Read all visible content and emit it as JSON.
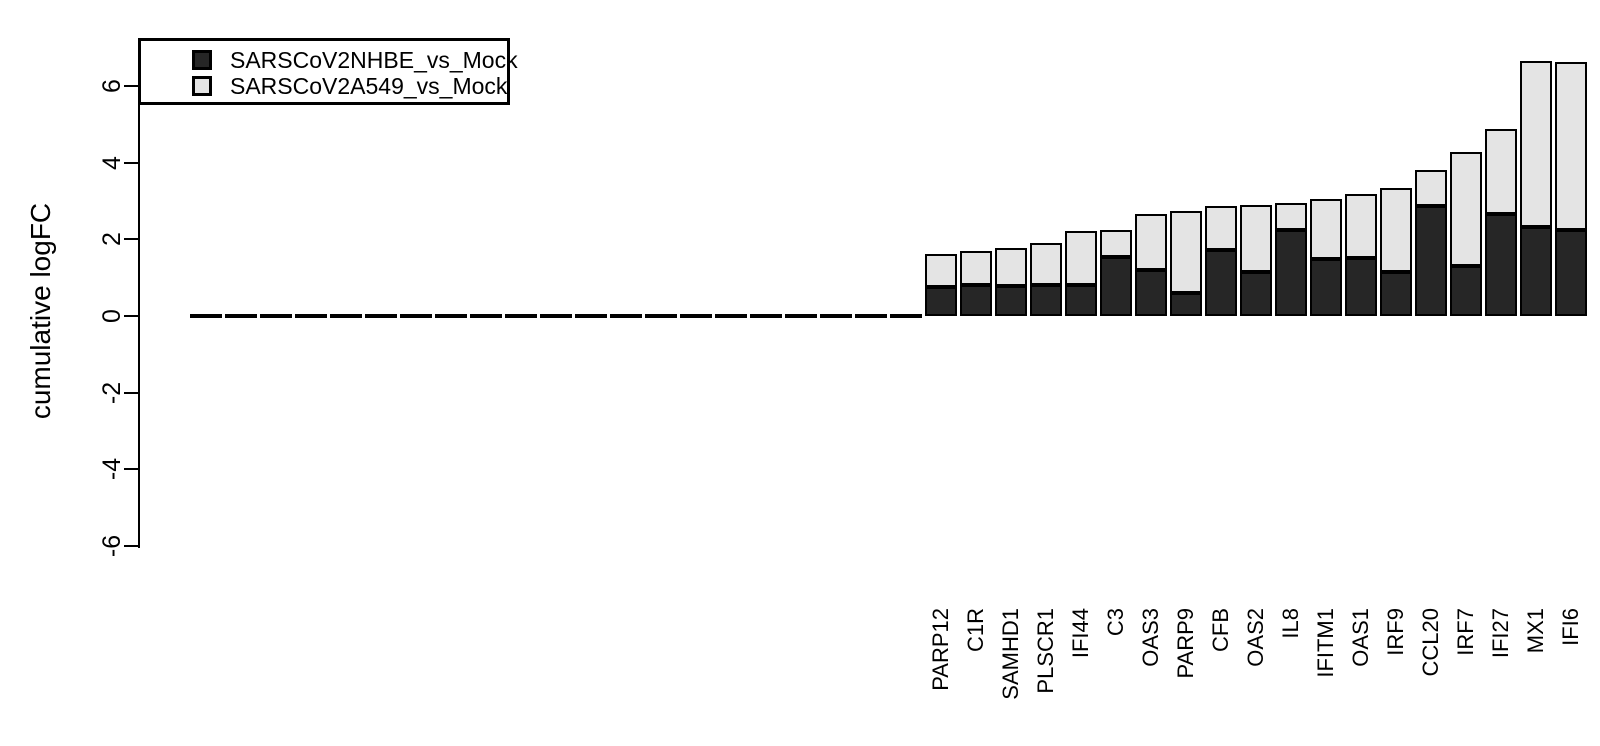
{
  "chart_data": {
    "type": "bar",
    "stacked": true,
    "title": "",
    "xlabel": "",
    "ylabel": "cumulative logFC",
    "yticks": [
      6,
      4,
      2,
      0,
      -2,
      -4,
      -6
    ],
    "ylim": [
      -6.8,
      6.9
    ],
    "grid": false,
    "legend_position": "top-left",
    "zero_bar_count": 21,
    "note_zero_bars": "21 unlabeled genes at far left drawn as zero-height dashes at cumulative logFC = 0",
    "categories": [
      "PARP12",
      "C1R",
      "SAMHD1",
      "PLSCR1",
      "IFI44",
      "C3",
      "OAS3",
      "PARP9",
      "CFB",
      "OAS2",
      "IL8",
      "IFITM1",
      "OAS1",
      "IRF9",
      "CCL20",
      "IRF7",
      "IFI27",
      "MX1",
      "IFI6"
    ],
    "series": [
      {
        "name": "SARSCoV2NHBE_vs_Mock",
        "color": "#262626",
        "values": [
          0.75,
          0.8,
          0.78,
          0.8,
          0.82,
          1.55,
          1.2,
          0.6,
          1.72,
          1.15,
          2.24,
          1.5,
          1.52,
          1.16,
          2.88,
          1.3,
          2.66,
          2.32,
          2.24
        ]
      },
      {
        "name": "SARSCoV2A549_vs_Mock",
        "color": "#e4e4e4",
        "values": [
          0.85,
          0.9,
          1.0,
          1.1,
          1.4,
          0.7,
          1.45,
          2.15,
          1.15,
          1.75,
          0.7,
          1.57,
          1.66,
          2.19,
          0.95,
          2.98,
          2.22,
          4.34,
          4.39
        ]
      }
    ],
    "totals": [
      1.6,
      1.7,
      1.78,
      1.9,
      2.22,
      2.25,
      2.65,
      2.75,
      2.87,
      2.9,
      2.94,
      3.07,
      3.18,
      3.35,
      3.83,
      4.28,
      4.88,
      6.66,
      6.63
    ]
  },
  "legend": {
    "items": [
      {
        "label": "SARSCoV2NHBE_vs_Mock"
      },
      {
        "label": "SARSCoV2A549_vs_Mock"
      }
    ]
  },
  "axes": {
    "y_title": "cumulative logFC"
  }
}
